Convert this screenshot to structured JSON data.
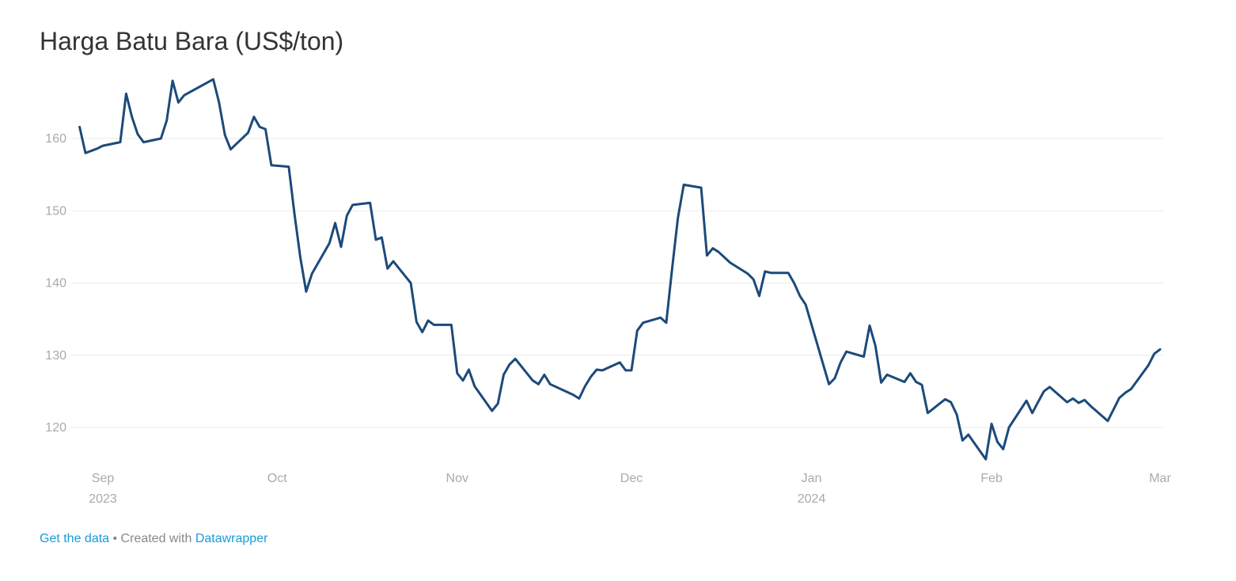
{
  "chart_data": {
    "type": "line",
    "title": "Harga Batu Bara (US$/ton)",
    "xlabel": "",
    "ylabel": "",
    "ylim": [
      115,
      169
    ],
    "yticks": [
      120,
      130,
      140,
      150,
      160
    ],
    "grid": true,
    "x_ticks": [
      {
        "date": "2023-09-01",
        "label": "Sep",
        "sublabel": "2023"
      },
      {
        "date": "2023-10-01",
        "label": "Oct",
        "sublabel": ""
      },
      {
        "date": "2023-11-01",
        "label": "Nov",
        "sublabel": ""
      },
      {
        "date": "2023-12-01",
        "label": "Dec",
        "sublabel": ""
      },
      {
        "date": "2024-01-01",
        "label": "Jan",
        "sublabel": "2024"
      },
      {
        "date": "2024-02-01",
        "label": "Feb",
        "sublabel": ""
      },
      {
        "date": "2024-03-01",
        "label": "Mar",
        "sublabel": ""
      }
    ],
    "color": "#1c4a7a",
    "series": [
      {
        "points": [
          [
            "2023-08-28",
            161.6
          ],
          [
            "2023-08-29",
            158.0
          ],
          [
            "2023-08-31",
            158.6
          ],
          [
            "2023-09-01",
            159.0
          ],
          [
            "2023-09-04",
            159.5
          ],
          [
            "2023-09-05",
            166.2
          ],
          [
            "2023-09-06",
            163.0
          ],
          [
            "2023-09-07",
            160.6
          ],
          [
            "2023-09-08",
            159.5
          ],
          [
            "2023-09-11",
            160.0
          ],
          [
            "2023-09-12",
            162.5
          ],
          [
            "2023-09-13",
            168.0
          ],
          [
            "2023-09-14",
            165.0
          ],
          [
            "2023-09-15",
            166.0
          ],
          [
            "2023-09-20",
            168.2
          ],
          [
            "2023-09-21",
            165.0
          ],
          [
            "2023-09-22",
            160.5
          ],
          [
            "2023-09-23",
            158.5
          ],
          [
            "2023-09-26",
            160.8
          ],
          [
            "2023-09-27",
            163.0
          ],
          [
            "2023-09-28",
            161.6
          ],
          [
            "2023-09-29",
            161.3
          ],
          [
            "2023-09-30",
            156.3
          ],
          [
            "2023-10-03",
            156.1
          ],
          [
            "2023-10-04",
            149.5
          ],
          [
            "2023-10-05",
            143.5
          ],
          [
            "2023-10-06",
            138.8
          ],
          [
            "2023-10-07",
            141.3
          ],
          [
            "2023-10-10",
            145.5
          ],
          [
            "2023-10-11",
            148.3
          ],
          [
            "2023-10-12",
            145.0
          ],
          [
            "2023-10-13",
            149.3
          ],
          [
            "2023-10-14",
            150.8
          ],
          [
            "2023-10-17",
            151.1
          ],
          [
            "2023-10-18",
            146.0
          ],
          [
            "2023-10-19",
            146.3
          ],
          [
            "2023-10-20",
            142.0
          ],
          [
            "2023-10-21",
            143.0
          ],
          [
            "2023-10-24",
            140.0
          ],
          [
            "2023-10-25",
            134.6
          ],
          [
            "2023-10-26",
            133.2
          ],
          [
            "2023-10-27",
            134.8
          ],
          [
            "2023-10-28",
            134.2
          ],
          [
            "2023-10-31",
            134.2
          ],
          [
            "2023-11-01",
            127.5
          ],
          [
            "2023-11-02",
            126.5
          ],
          [
            "2023-11-03",
            128.0
          ],
          [
            "2023-11-04",
            125.7
          ],
          [
            "2023-11-07",
            122.3
          ],
          [
            "2023-11-08",
            123.3
          ],
          [
            "2023-11-09",
            127.3
          ],
          [
            "2023-11-10",
            128.7
          ],
          [
            "2023-11-11",
            129.5
          ],
          [
            "2023-11-14",
            126.5
          ],
          [
            "2023-11-15",
            126.0
          ],
          [
            "2023-11-16",
            127.3
          ],
          [
            "2023-11-17",
            126.0
          ],
          [
            "2023-11-21",
            124.5
          ],
          [
            "2023-11-22",
            124.0
          ],
          [
            "2023-11-23",
            125.7
          ],
          [
            "2023-11-24",
            127.0
          ],
          [
            "2023-11-25",
            128.0
          ],
          [
            "2023-11-26",
            127.9
          ],
          [
            "2023-11-29",
            129.0
          ],
          [
            "2023-11-30",
            127.9
          ],
          [
            "2023-12-01",
            127.9
          ],
          [
            "2023-12-02",
            133.4
          ],
          [
            "2023-12-03",
            134.5
          ],
          [
            "2023-12-06",
            135.2
          ],
          [
            "2023-12-07",
            134.5
          ],
          [
            "2023-12-08",
            142.0
          ],
          [
            "2023-12-09",
            149.0
          ],
          [
            "2023-12-10",
            153.6
          ],
          [
            "2023-12-13",
            153.2
          ],
          [
            "2023-12-14",
            143.8
          ],
          [
            "2023-12-15",
            144.8
          ],
          [
            "2023-12-16",
            144.3
          ],
          [
            "2023-12-18",
            142.8
          ],
          [
            "2023-12-21",
            141.3
          ],
          [
            "2023-12-22",
            140.5
          ],
          [
            "2023-12-23",
            138.2
          ],
          [
            "2023-12-24",
            141.6
          ],
          [
            "2023-12-25",
            141.4
          ],
          [
            "2023-12-28",
            141.4
          ],
          [
            "2023-12-29",
            140.0
          ],
          [
            "2023-12-30",
            138.2
          ],
          [
            "2023-12-31",
            137.0
          ],
          [
            "2024-01-04",
            126.0
          ],
          [
            "2024-01-05",
            126.8
          ],
          [
            "2024-01-06",
            129.0
          ],
          [
            "2024-01-07",
            130.5
          ],
          [
            "2024-01-10",
            129.8
          ],
          [
            "2024-01-11",
            134.1
          ],
          [
            "2024-01-12",
            131.3
          ],
          [
            "2024-01-13",
            126.2
          ],
          [
            "2024-01-14",
            127.3
          ],
          [
            "2024-01-17",
            126.3
          ],
          [
            "2024-01-18",
            127.5
          ],
          [
            "2024-01-19",
            126.3
          ],
          [
            "2024-01-20",
            125.9
          ],
          [
            "2024-01-21",
            122.0
          ],
          [
            "2024-01-24",
            123.9
          ],
          [
            "2024-01-25",
            123.5
          ],
          [
            "2024-01-26",
            121.8
          ],
          [
            "2024-01-27",
            118.2
          ],
          [
            "2024-01-28",
            119.0
          ],
          [
            "2024-01-31",
            115.6
          ],
          [
            "2024-02-01",
            120.5
          ],
          [
            "2024-02-02",
            118.0
          ],
          [
            "2024-02-03",
            117.0
          ],
          [
            "2024-02-04",
            120.0
          ],
          [
            "2024-02-07",
            123.7
          ],
          [
            "2024-02-08",
            122.0
          ],
          [
            "2024-02-09",
            123.5
          ],
          [
            "2024-02-10",
            125.0
          ],
          [
            "2024-02-11",
            125.6
          ],
          [
            "2024-02-14",
            123.5
          ],
          [
            "2024-02-15",
            124.0
          ],
          [
            "2024-02-16",
            123.4
          ],
          [
            "2024-02-17",
            123.8
          ],
          [
            "2024-02-18",
            123.0
          ],
          [
            "2024-02-21",
            120.9
          ],
          [
            "2024-02-22",
            122.5
          ],
          [
            "2024-02-23",
            124.1
          ],
          [
            "2024-02-24",
            124.8
          ],
          [
            "2024-02-25",
            125.3
          ],
          [
            "2024-02-28",
            128.6
          ],
          [
            "2024-02-29",
            130.2
          ],
          [
            "2024-03-01",
            130.8
          ]
        ]
      }
    ]
  },
  "footer": {
    "get_data": "Get the data",
    "separator": " • Created with ",
    "datawrapper": "Datawrapper"
  }
}
